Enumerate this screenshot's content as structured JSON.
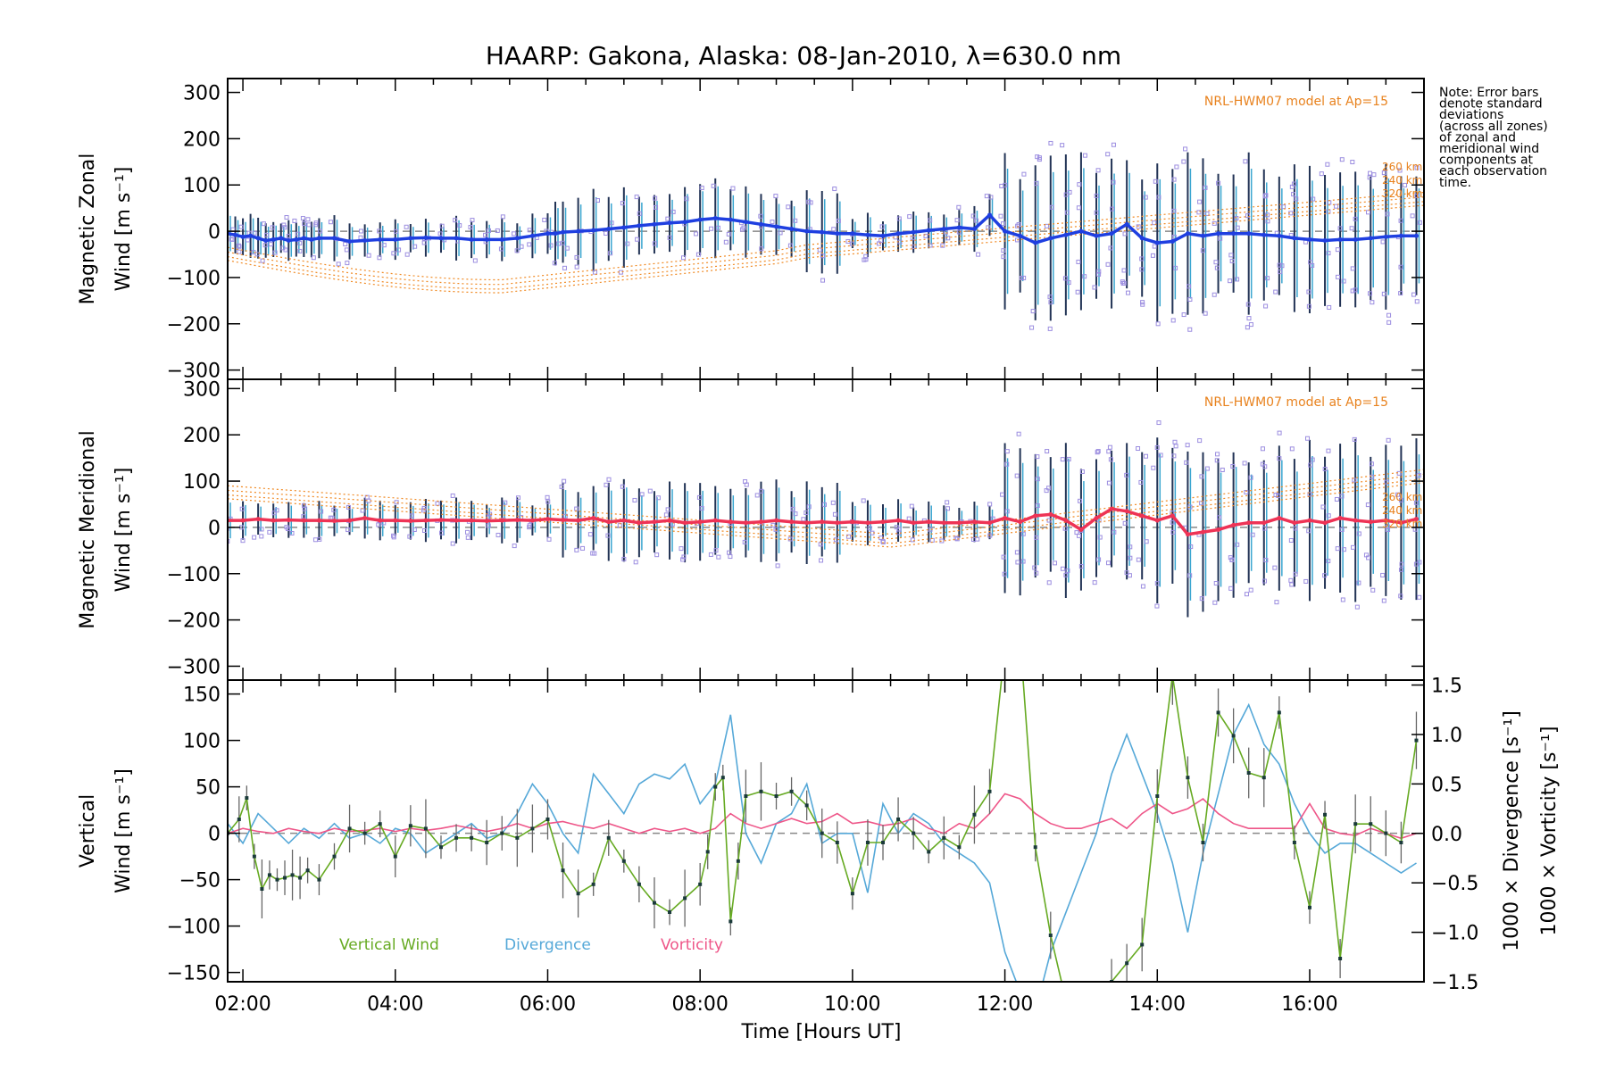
{
  "chart_data": [
    {
      "type": "line",
      "title": "HAARP: Gakona,  Alaska: 08-Jan-2010, λ=630.0 nm",
      "ylabel_lines": [
        "Magnetic Zonal",
        "Wind [m s⁻¹]"
      ],
      "xlim": [
        1.8,
        17.5
      ],
      "ylim": [
        -320,
        330
      ],
      "yticks": [
        -300,
        -200,
        -100,
        0,
        100,
        200,
        300
      ],
      "model_label": "NRL-HWM07 model at Ap=15",
      "model_alt_labels": [
        "260 km",
        "240 km",
        "320 km"
      ],
      "colors": {
        "mean": "#1f3fe0",
        "model": "#f08a24",
        "scatter": "#9c8ee0",
        "error": "#333344"
      },
      "series": [
        {
          "values_x": [
            1.8,
            1.9,
            2.0,
            2.1,
            2.2,
            2.3,
            2.4,
            2.5,
            2.6,
            2.7,
            2.8,
            2.9,
            3.0,
            3.2,
            3.4,
            3.6,
            3.8,
            4.0,
            4.2,
            4.4,
            4.6,
            4.8,
            5.0,
            5.2,
            5.4,
            5.6,
            5.8,
            6.0,
            6.1,
            6.2,
            6.4,
            6.6,
            6.8,
            7.0,
            7.2,
            7.4,
            7.6,
            7.8,
            8.0,
            8.2,
            8.4,
            8.6,
            8.8,
            9.0,
            9.2,
            9.4,
            9.6,
            9.8,
            10.0,
            10.2,
            10.4,
            10.6,
            10.8,
            11.0,
            11.2,
            11.4,
            11.6,
            11.8,
            12.0,
            12.2,
            12.4,
            12.6,
            12.8,
            13.0,
            13.2,
            13.4,
            13.6,
            13.8,
            14.0,
            14.2,
            14.4,
            14.6,
            14.8,
            15.0,
            15.2,
            15.4,
            15.6,
            15.8,
            16.0,
            16.2,
            16.4,
            16.6,
            16.8,
            17.0,
            17.2,
            17.4
          ],
          "values_y": [
            -5,
            -8,
            -12,
            -10,
            -15,
            -20,
            -18,
            -15,
            -20,
            -18,
            -15,
            -18,
            -15,
            -15,
            -22,
            -20,
            -18,
            -18,
            -15,
            -14,
            -15,
            -15,
            -18,
            -18,
            -18,
            -15,
            -10,
            -5,
            -5,
            -2,
            0,
            2,
            5,
            8,
            12,
            15,
            18,
            20,
            25,
            28,
            25,
            20,
            15,
            10,
            5,
            0,
            -2,
            -5,
            -5,
            -8,
            -10,
            -5,
            -2,
            2,
            5,
            8,
            5,
            35,
            0,
            -10,
            -25,
            -15,
            -8,
            0,
            -10,
            -5,
            15,
            -15,
            -25,
            -22,
            -5,
            -10,
            -5,
            -5,
            -5,
            -8,
            -10,
            -15,
            -18,
            -20,
            -18,
            -18,
            -15,
            -12,
            -10,
            -10
          ]
        }
      ]
    },
    {
      "type": "line",
      "ylabel_lines": [
        "Magnetic Meridional",
        "Wind [m s⁻¹]"
      ],
      "xlim": [
        1.8,
        17.5
      ],
      "ylim": [
        -330,
        320
      ],
      "yticks": [
        -300,
        -200,
        -100,
        0,
        100,
        200,
        300
      ],
      "model_label": "NRL-HWM07 model at Ap=15",
      "model_alt_labels": [
        "260 km",
        "240 km",
        "320 km"
      ],
      "colors": {
        "mean": "#ee3355",
        "model": "#f08a24",
        "scatter": "#9c8ee0",
        "error": "#333344"
      },
      "series": [
        {
          "values_x": [
            1.8,
            2.0,
            2.2,
            2.4,
            2.6,
            2.8,
            3.0,
            3.2,
            3.4,
            3.6,
            3.8,
            4.0,
            4.2,
            4.4,
            4.6,
            4.8,
            5.0,
            5.2,
            5.4,
            5.6,
            5.8,
            6.0,
            6.2,
            6.4,
            6.6,
            6.8,
            7.0,
            7.2,
            7.4,
            7.6,
            7.8,
            8.0,
            8.2,
            8.4,
            8.6,
            8.8,
            9.0,
            9.2,
            9.4,
            9.6,
            9.8,
            10.0,
            10.2,
            10.4,
            10.6,
            10.8,
            11.0,
            11.2,
            11.4,
            11.6,
            11.8,
            12.0,
            12.2,
            12.4,
            12.6,
            12.8,
            13.0,
            13.2,
            13.4,
            13.6,
            13.8,
            14.0,
            14.2,
            14.4,
            14.6,
            14.8,
            15.0,
            15.2,
            15.4,
            15.6,
            15.8,
            16.0,
            16.2,
            16.4,
            16.6,
            16.8,
            17.0,
            17.2,
            17.4
          ],
          "values_y": [
            15,
            15,
            18,
            15,
            16,
            15,
            15,
            14,
            15,
            20,
            15,
            15,
            14,
            15,
            16,
            15,
            15,
            14,
            15,
            16,
            15,
            18,
            16,
            15,
            20,
            12,
            15,
            10,
            12,
            15,
            10,
            12,
            15,
            12,
            10,
            12,
            15,
            12,
            10,
            12,
            10,
            12,
            10,
            12,
            15,
            10,
            12,
            10,
            10,
            12,
            10,
            20,
            12,
            25,
            28,
            15,
            -5,
            20,
            40,
            35,
            25,
            15,
            25,
            -15,
            -10,
            -5,
            5,
            10,
            10,
            20,
            10,
            15,
            10,
            20,
            15,
            12,
            15,
            10,
            18
          ]
        }
      ]
    },
    {
      "type": "line",
      "ylabel_lines": [
        "Vertical",
        "Wind [m s⁻¹]"
      ],
      "y2label_lines": [
        "1000 × Divergence [s⁻¹]",
        "1000 × Vorticity [s⁻¹]"
      ],
      "xlabel": "Time [Hours UT]",
      "xlim": [
        1.8,
        17.5
      ],
      "xticks": [
        2,
        4,
        6,
        8,
        10,
        12,
        14,
        16
      ],
      "xtick_labels": [
        "02:00",
        "04:00",
        "06:00",
        "08:00",
        "10:00",
        "12:00",
        "14:00",
        "16:00"
      ],
      "ylim": [
        -160,
        165
      ],
      "yticks": [
        -150,
        -100,
        -50,
        0,
        50,
        100,
        150
      ],
      "y2lim": [
        -1.5,
        1.55
      ],
      "y2ticks": [
        -1.5,
        -1.0,
        -0.5,
        0.0,
        0.5,
        1.0,
        1.5
      ],
      "y2tick_labels": [
        "−1.5",
        "−1.0",
        "−0.5",
        "0.0",
        "0.5",
        "1.0",
        "1.5"
      ],
      "legend": [
        "Vertical Wind",
        "Divergence",
        "Vorticity"
      ],
      "colors": {
        "vertical": "#66aa22",
        "divergence": "#55a8d8",
        "vorticity": "#ee5588",
        "error": "#666666"
      },
      "series": [
        {
          "name": "Vertical Wind",
          "values_x": [
            1.8,
            1.95,
            2.05,
            2.15,
            2.25,
            2.35,
            2.45,
            2.55,
            2.65,
            2.75,
            2.85,
            3.0,
            3.2,
            3.4,
            3.6,
            3.8,
            4.0,
            4.2,
            4.4,
            4.6,
            4.8,
            5.0,
            5.2,
            5.4,
            5.6,
            5.8,
            6.0,
            6.2,
            6.4,
            6.6,
            6.8,
            7.0,
            7.2,
            7.4,
            7.6,
            7.8,
            8.0,
            8.1,
            8.2,
            8.3,
            8.4,
            8.5,
            8.6,
            8.8,
            9.0,
            9.2,
            9.4,
            9.6,
            9.8,
            10.0,
            10.2,
            10.4,
            10.6,
            10.8,
            11.0,
            11.2,
            11.4,
            11.6,
            11.8,
            12.0,
            12.2,
            12.4,
            12.6,
            12.8,
            13.0,
            13.2,
            13.4,
            13.6,
            13.8,
            14.0,
            14.2,
            14.4,
            14.6,
            14.8,
            15.0,
            15.2,
            15.4,
            15.6,
            15.8,
            16.0,
            16.2,
            16.4,
            16.6,
            16.8,
            17.0,
            17.2,
            17.4
          ],
          "values_y": [
            0,
            15,
            38,
            -25,
            -60,
            -45,
            -50,
            -48,
            -45,
            -48,
            -40,
            -50,
            -25,
            5,
            0,
            10,
            -25,
            8,
            5,
            -15,
            -5,
            -5,
            -10,
            0,
            -5,
            5,
            15,
            -40,
            -65,
            -55,
            -5,
            -30,
            -55,
            -75,
            -85,
            -70,
            -55,
            -20,
            50,
            60,
            -95,
            -30,
            40,
            45,
            40,
            45,
            30,
            0,
            -10,
            -65,
            -10,
            -10,
            15,
            0,
            -20,
            -5,
            -15,
            20,
            45,
            200,
            210,
            -15,
            -110,
            -180,
            -200,
            -190,
            -160,
            -140,
            -120,
            40,
            170,
            60,
            -10,
            130,
            105,
            65,
            60,
            130,
            -10,
            -80,
            20,
            -135,
            10,
            10,
            0,
            -10,
            100
          ]
        },
        {
          "name": "Divergence",
          "axis": "y2",
          "values_x": [
            1.8,
            2.0,
            2.2,
            2.4,
            2.6,
            2.8,
            3.0,
            3.2,
            3.4,
            3.6,
            3.8,
            4.0,
            4.2,
            4.4,
            4.6,
            4.8,
            5.0,
            5.2,
            5.4,
            5.6,
            5.8,
            6.0,
            6.2,
            6.4,
            6.6,
            6.8,
            7.0,
            7.2,
            7.4,
            7.6,
            7.8,
            8.0,
            8.2,
            8.4,
            8.6,
            8.8,
            9.0,
            9.2,
            9.4,
            9.6,
            9.8,
            10.0,
            10.2,
            10.4,
            10.6,
            10.8,
            11.0,
            11.2,
            11.4,
            11.6,
            11.8,
            12.0,
            12.2,
            12.4,
            12.6,
            12.8,
            13.0,
            13.2,
            13.4,
            13.6,
            13.8,
            14.0,
            14.2,
            14.4,
            14.6,
            14.8,
            15.0,
            15.2,
            15.4,
            15.6,
            15.8,
            16.0,
            16.2,
            16.4,
            16.6,
            16.8,
            17.0,
            17.2,
            17.4
          ],
          "values_y": [
            0.1,
            -0.1,
            0.2,
            0.05,
            -0.1,
            0.05,
            -0.05,
            0.1,
            -0.05,
            0.0,
            -0.1,
            0.05,
            0.0,
            -0.2,
            -0.1,
            0.0,
            0.1,
            -0.05,
            0.0,
            0.2,
            0.5,
            0.3,
            0.0,
            -0.2,
            0.6,
            0.4,
            0.2,
            0.5,
            0.6,
            0.55,
            0.7,
            0.3,
            0.5,
            1.2,
            0.0,
            -0.3,
            0.1,
            0.2,
            0.5,
            -0.1,
            0.0,
            0.0,
            -0.6,
            0.3,
            0.0,
            0.2,
            0.1,
            -0.1,
            -0.2,
            -0.3,
            -0.5,
            -1.2,
            -1.6,
            -1.8,
            -1.2,
            -0.8,
            -0.4,
            0.0,
            0.6,
            1.0,
            0.6,
            0.2,
            -0.3,
            -1.0,
            -0.2,
            0.4,
            1.0,
            1.3,
            0.9,
            0.7,
            0.3,
            0.0,
            -0.2,
            -0.1,
            -0.1,
            -0.2,
            -0.3,
            -0.4,
            -0.3
          ]
        },
        {
          "name": "Vorticity",
          "axis": "y2",
          "values_x": [
            1.8,
            2.0,
            2.2,
            2.4,
            2.6,
            2.8,
            3.0,
            3.2,
            3.4,
            3.6,
            3.8,
            4.0,
            4.2,
            4.4,
            4.6,
            4.8,
            5.0,
            5.2,
            5.4,
            5.6,
            5.8,
            6.0,
            6.2,
            6.4,
            6.6,
            6.8,
            7.0,
            7.2,
            7.4,
            7.6,
            7.8,
            8.0,
            8.2,
            8.4,
            8.6,
            8.8,
            9.0,
            9.2,
            9.4,
            9.6,
            9.8,
            10.0,
            10.2,
            10.4,
            10.6,
            10.8,
            11.0,
            11.2,
            11.4,
            11.6,
            11.8,
            12.0,
            12.2,
            12.4,
            12.6,
            12.8,
            13.0,
            13.2,
            13.4,
            13.6,
            13.8,
            14.0,
            14.2,
            14.4,
            14.6,
            14.8,
            15.0,
            15.2,
            15.4,
            15.6,
            15.8,
            16.0,
            16.2,
            16.4,
            16.6,
            16.8,
            17.0,
            17.2,
            17.4
          ],
          "values_y": [
            0.0,
            0.05,
            0.02,
            0.0,
            0.05,
            0.02,
            0.0,
            0.05,
            0.02,
            0.03,
            0.05,
            0.02,
            0.05,
            0.03,
            0.05,
            0.08,
            0.05,
            0.02,
            0.05,
            0.1,
            0.05,
            0.1,
            0.12,
            0.08,
            0.05,
            0.1,
            0.05,
            0.0,
            0.05,
            0.02,
            0.05,
            0.0,
            0.05,
            0.2,
            0.1,
            0.05,
            0.1,
            0.15,
            0.1,
            0.12,
            0.2,
            0.1,
            0.12,
            0.08,
            0.1,
            0.15,
            0.05,
            0.0,
            0.1,
            0.05,
            0.2,
            0.4,
            0.35,
            0.2,
            0.1,
            0.05,
            0.05,
            0.1,
            0.15,
            0.05,
            0.2,
            0.3,
            0.2,
            0.25,
            0.35,
            0.2,
            0.1,
            0.05,
            0.05,
            0.05,
            0.05,
            0.3,
            0.05,
            0.0,
            -0.02,
            0.05,
            0.0,
            -0.05,
            0.0
          ]
        }
      ]
    }
  ],
  "note_lines": [
    "Note: Error bars",
    "denote standard",
    "deviations",
    "(across all zones)",
    "of zonal and",
    "meridional wind",
    "components at",
    "each observation",
    "time."
  ]
}
